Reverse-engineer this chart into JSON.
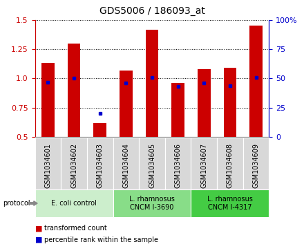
{
  "title": "GDS5006 / 186093_at",
  "samples": [
    "GSM1034601",
    "GSM1034602",
    "GSM1034603",
    "GSM1034604",
    "GSM1034605",
    "GSM1034606",
    "GSM1034607",
    "GSM1034608",
    "GSM1034609"
  ],
  "transformed_count": [
    1.13,
    1.3,
    0.62,
    1.07,
    1.42,
    0.96,
    1.08,
    1.09,
    1.45
  ],
  "percentile_rank": [
    47,
    50,
    20,
    46,
    51,
    43,
    46,
    44,
    51
  ],
  "ylim_left": [
    0.5,
    1.5
  ],
  "ylim_right": [
    0,
    100
  ],
  "yticks_left": [
    0.5,
    0.75,
    1.0,
    1.25,
    1.5
  ],
  "yticks_right": [
    0,
    25,
    50,
    75,
    100
  ],
  "bar_color": "#cc0000",
  "dot_color": "#0000cc",
  "bar_width": 0.5,
  "groups": [
    {
      "label": "E. coli control",
      "start": 0,
      "end": 3
    },
    {
      "label": "L. rhamnosus\nCNCM I-3690",
      "start": 3,
      "end": 6
    },
    {
      "label": "L. rhamnosus\nCNCM I-4317",
      "start": 6,
      "end": 9
    }
  ],
  "group_bg_colors": [
    "#cceecc",
    "#88dd88",
    "#44cc44"
  ],
  "sample_box_color": "#d8d8d8",
  "title_fontsize": 10,
  "tick_fontsize": 7,
  "background_color": "#ffffff"
}
